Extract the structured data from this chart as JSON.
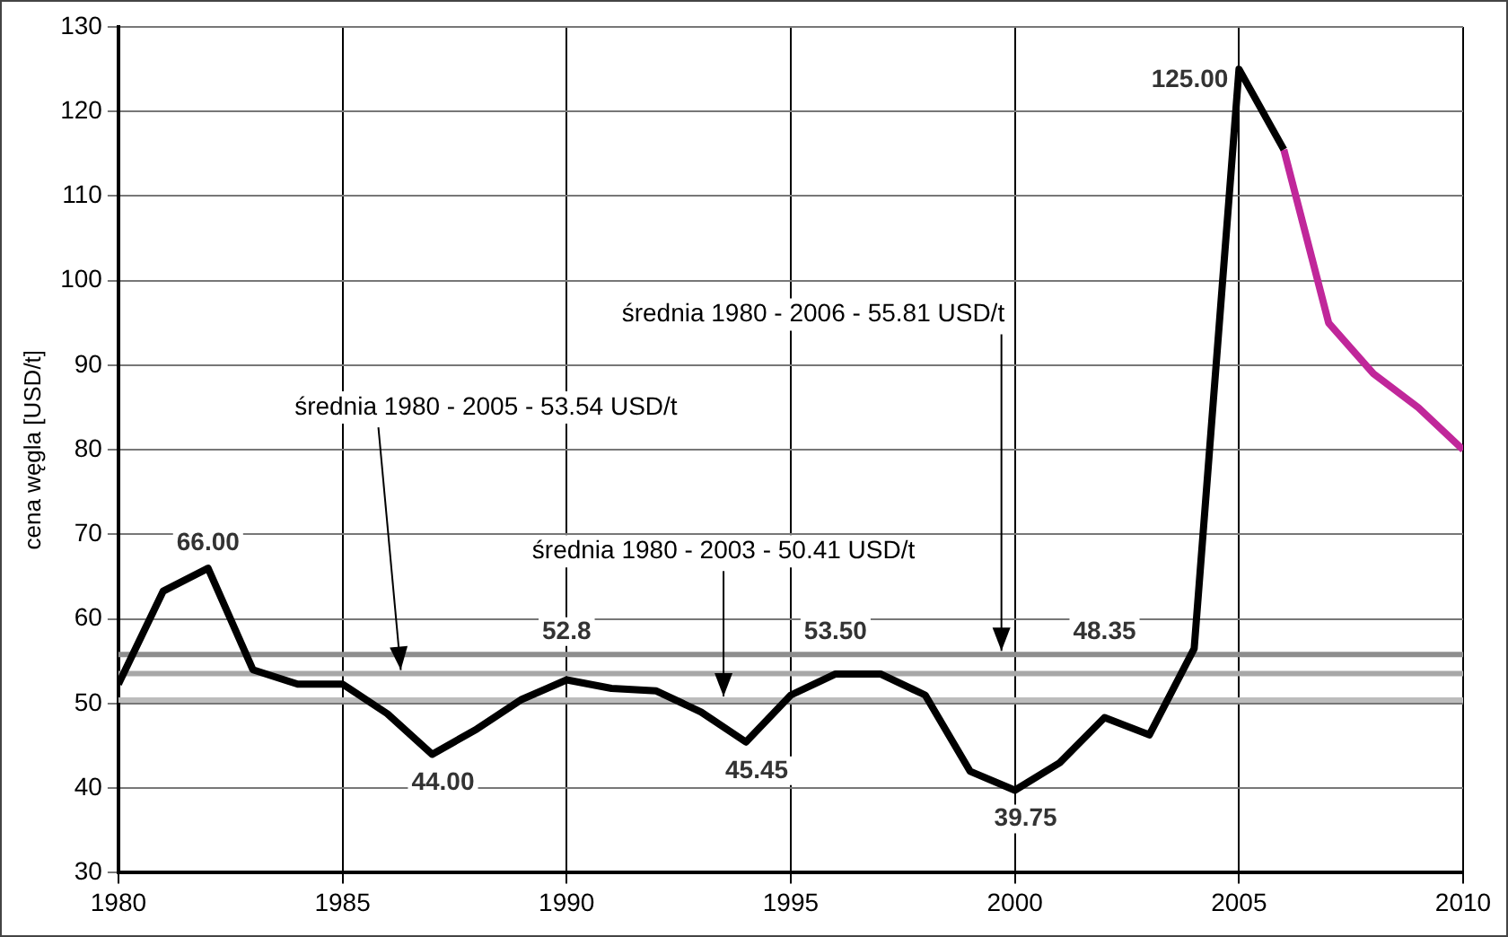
{
  "chart_data": {
    "type": "line",
    "ylabel": "cena węgla [USD/t]",
    "x": [
      1980,
      1981,
      1982,
      1983,
      1984,
      1985,
      1986,
      1987,
      1988,
      1989,
      1990,
      1991,
      1992,
      1993,
      1994,
      1995,
      1996,
      1997,
      1998,
      1999,
      2000,
      2001,
      2002,
      2003,
      2004,
      2005,
      2006
    ],
    "series": [
      {
        "color": "#000000",
        "values": [
          52.3,
          63.3,
          66.0,
          54.0,
          52.3,
          52.3,
          48.8,
          44.0,
          47.0,
          50.5,
          52.8,
          51.8,
          51.5,
          49.0,
          45.45,
          51.0,
          53.5,
          53.5,
          51.0,
          42.0,
          39.75,
          43.0,
          48.35,
          46.3,
          56.5,
          125.0,
          115.5
        ],
        "value_labels": [
          null,
          null,
          "66.00",
          null,
          null,
          null,
          null,
          "44.00",
          null,
          null,
          "52.8",
          null,
          null,
          null,
          "45.45",
          null,
          "53.50",
          null,
          null,
          null,
          "39.75",
          null,
          "48.35",
          null,
          null,
          "125.00",
          null
        ]
      },
      {
        "color": "#c0279a",
        "x": [
          2006,
          2007,
          2008,
          2009,
          2010
        ],
        "values": [
          115.5,
          95.0,
          89.0,
          85.0,
          80.0
        ]
      }
    ],
    "xlim": [
      1980,
      2010
    ],
    "xticks": [
      1980,
      1985,
      1990,
      1995,
      2000,
      2005,
      2010
    ],
    "ylim": [
      30,
      130
    ],
    "yticks": [
      30,
      40,
      50,
      60,
      70,
      80,
      90,
      100,
      110,
      120,
      130
    ],
    "grid": true,
    "legend": false,
    "marker": "none",
    "line_style": "solid",
    "ref_lines": [
      {
        "axis": "y",
        "value": 53.54,
        "label": "średnia 1980 - 2005 - 53.54 USD/t",
        "color": "#a8a8a8"
      },
      {
        "axis": "y",
        "value": 50.41,
        "label": "średnia 1980 - 2003 - 50.41 USD/t",
        "color": "#bcbcbc"
      },
      {
        "axis": "y",
        "value": 55.81,
        "label": "średnia 1980 - 2006 - 55.81 USD/t",
        "color": "#8e8e8e"
      }
    ]
  }
}
